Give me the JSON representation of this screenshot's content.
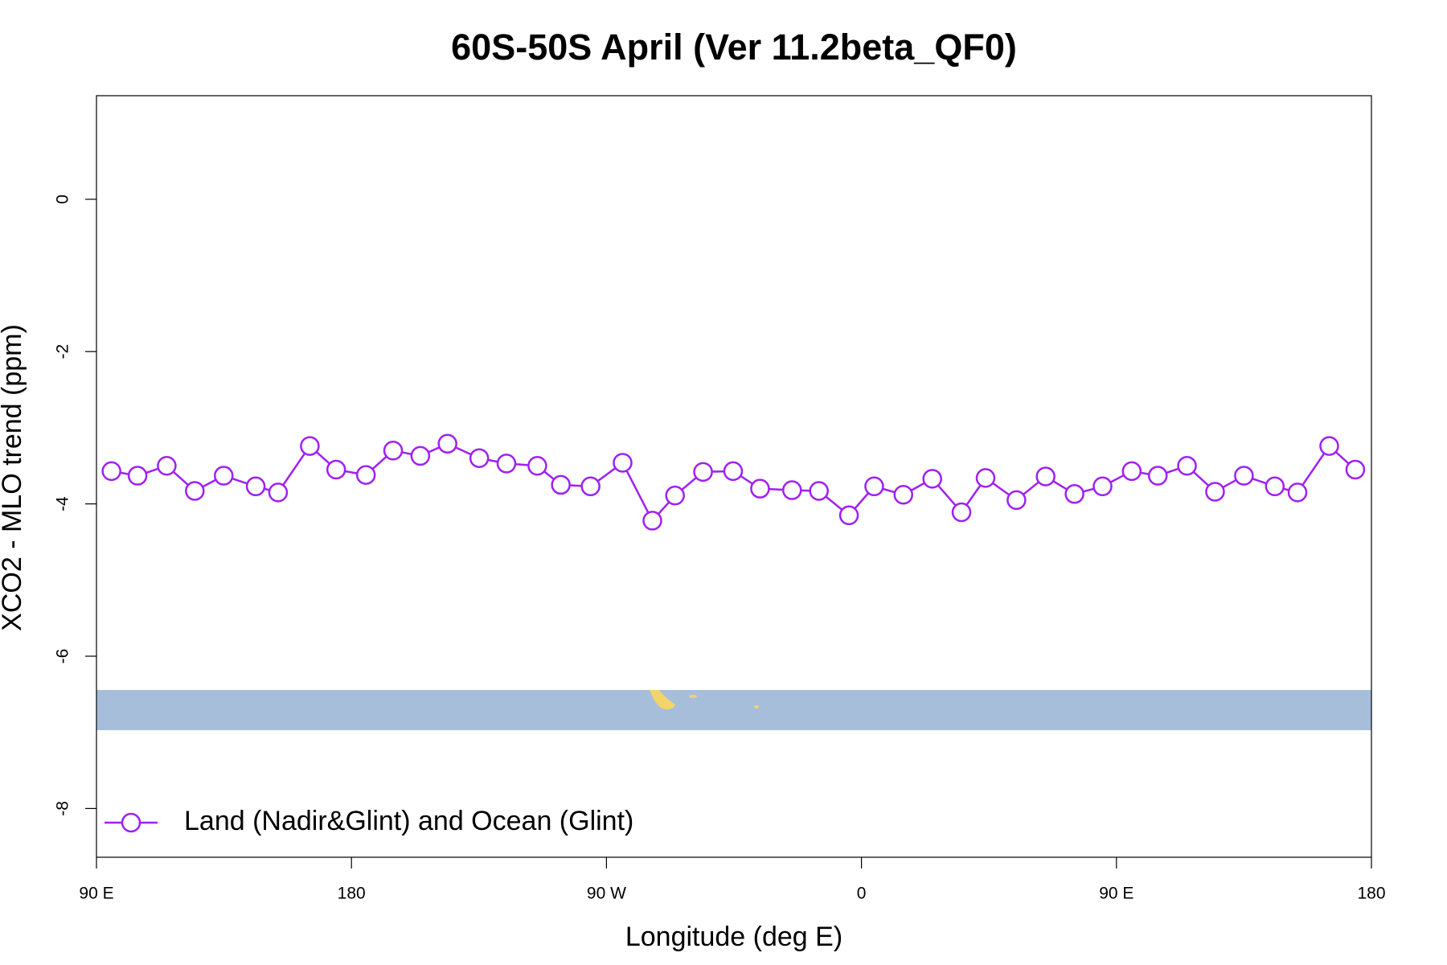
{
  "chart_data": {
    "type": "line",
    "title": "60S-50S April (Ver 11.2beta_QF0)",
    "x_label": "Longitude (deg E)",
    "y_label": "XCO2 - MLO trend (ppm)",
    "x": [
      95.3,
      104.5,
      114.8,
      124.7,
      134.9,
      146.2,
      154.1,
      165.3,
      174.6,
      185.1,
      194.7,
      204.3,
      213.9,
      225.1,
      234.7,
      245.6,
      253.9,
      264.4,
      275.7,
      286.2,
      294.2,
      304.1,
      314.7,
      324.2,
      335.5,
      345.0,
      355.6,
      364.5,
      374.8,
      385.0,
      395.3,
      403.8,
      414.7,
      425.0,
      435.2,
      445.1,
      455.4,
      464.6,
      474.9,
      484.8,
      495.0,
      505.9,
      513.9,
      525.1,
      534.3
    ],
    "series": [
      {
        "name": "Land (Nadir&Glint) and Ocean (Glint)",
        "color": "#a020f0",
        "values": [
          -3.57,
          -3.63,
          -3.5,
          -3.83,
          -3.63,
          -3.77,
          -3.85,
          -3.24,
          -3.55,
          -3.62,
          -3.3,
          -3.37,
          -3.21,
          -3.4,
          -3.47,
          -3.5,
          -3.75,
          -3.77,
          -3.46,
          -4.22,
          -3.89,
          -3.58,
          -3.57,
          -3.8,
          -3.82,
          -3.83,
          -4.15,
          -3.77,
          -3.88,
          -3.67,
          -4.11,
          -3.66,
          -3.95,
          -3.64,
          -3.87,
          -3.77,
          -3.57,
          -3.63,
          -3.5,
          -3.84,
          -3.63,
          -3.77,
          -3.85,
          -3.24,
          -3.55
        ]
      }
    ],
    "xlim": [
      90,
      540
    ],
    "xticks": [
      {
        "value": 90,
        "label": "90 E"
      },
      {
        "value": 180,
        "label": "180"
      },
      {
        "value": 270,
        "label": "90 W"
      },
      {
        "value": 360,
        "label": "0"
      },
      {
        "value": 450,
        "label": "90 E"
      },
      {
        "value": 540,
        "label": "180"
      }
    ],
    "ylim": [
      -8.64,
      1.36
    ],
    "yticks": [
      0,
      -2,
      -4,
      -6,
      -8
    ],
    "grid": false,
    "legend": "bottomleft"
  }
}
